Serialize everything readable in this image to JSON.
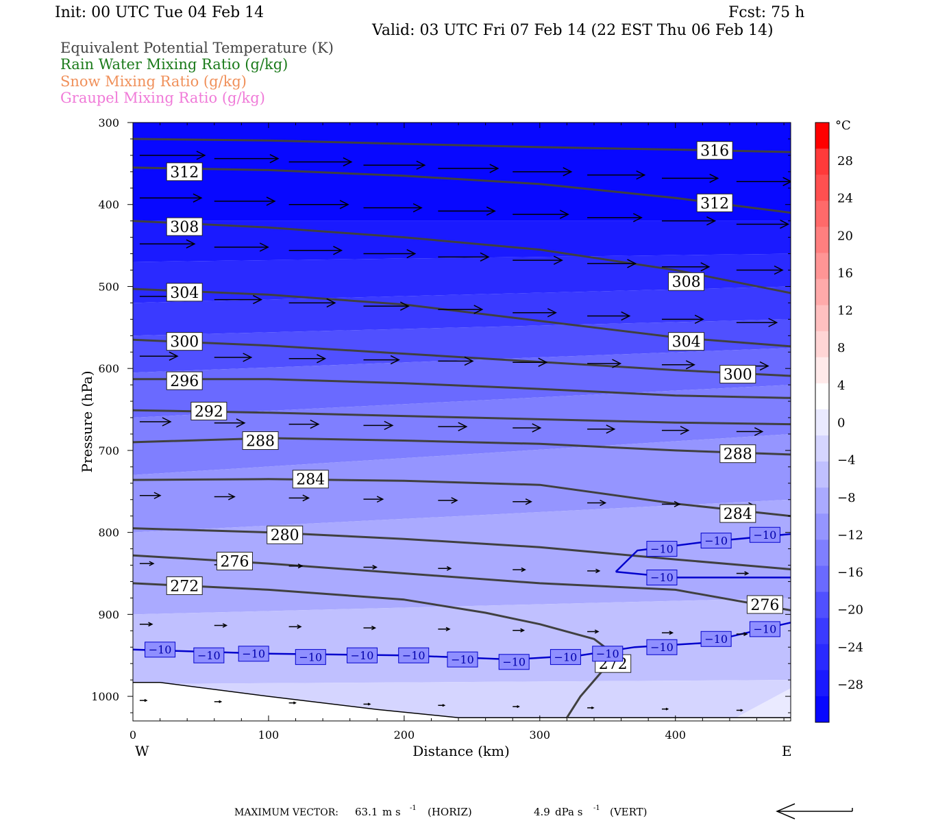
{
  "header": {
    "init": "Init: 00 UTC Tue 04 Feb 14",
    "fcst": "Fcst:   75 h",
    "valid": "Valid: 03 UTC Fri 07 Feb 14 (22 EST Thu 06 Feb 14)"
  },
  "legend": [
    {
      "label": "Equivalent Potential Temperature (K)",
      "color": "#444444"
    },
    {
      "label": "Rain Water Mixing Ratio (g/kg)",
      "color": "#1a7a1a"
    },
    {
      "label": "Snow Mixing Ratio (g/kg)",
      "color": "#f0905a"
    },
    {
      "label": "Graupel Mixing Ratio (g/kg)",
      "color": "#f07ad8"
    }
  ],
  "footer": {
    "max_vector_label": "MAXIMUM VECTOR:",
    "horiz_value": "63.1",
    "horiz_unit": "m s",
    "horiz_exp": "-1",
    "horiz_tag": "(HORIZ)",
    "vert_value": "4.9",
    "vert_unit": "dPa s",
    "vert_exp": "-1",
    "vert_tag": "(VERT)"
  },
  "chart_data": {
    "type": "cross-section",
    "xlabel": "Distance (km)",
    "ylabel": "Pressure (hPa)",
    "xlim": [
      0,
      485
    ],
    "ylim": [
      300,
      1030
    ],
    "x_ticks": [
      0,
      100,
      200,
      300,
      400
    ],
    "y_ticks": [
      300,
      400,
      500,
      600,
      700,
      800,
      900,
      1000
    ],
    "x_end_labels": {
      "left": "W",
      "right": "E"
    },
    "colorbar": {
      "unit": "°C",
      "ticks": [
        "28",
        "24",
        "20",
        "16",
        "12",
        "8",
        "4",
        "0",
        "−4",
        "−8",
        "−12",
        "−16",
        "−20",
        "−24",
        "−28"
      ],
      "colors": [
        "#ff0000",
        "#ff3a3a",
        "#ff5050",
        "#ff6a6a",
        "#ff7f7f",
        "#ff9595",
        "#ffaaaa",
        "#ffc0c0",
        "#ffd5d5",
        "#ffeaea",
        "#ffffff",
        "#eaeaff",
        "#d5d5ff",
        "#c0c0ff",
        "#aaaaff",
        "#9595ff",
        "#7f7fff",
        "#6a6aff",
        "#5050ff",
        "#3a3aff",
        "#2a2aff",
        "#1a1aff",
        "#0808ff"
      ]
    },
    "temperature_fill_bands": [
      {
        "color": "#0808ff",
        "points": [
          [
            0,
            300
          ],
          [
            485,
            300
          ],
          [
            485,
            420
          ],
          [
            0,
            420
          ]
        ]
      },
      {
        "color": "#1a1aff",
        "points": [
          [
            0,
            420
          ],
          [
            485,
            420
          ],
          [
            485,
            460
          ],
          [
            0,
            470
          ]
        ]
      },
      {
        "color": "#2a2aff",
        "points": [
          [
            0,
            470
          ],
          [
            485,
            460
          ],
          [
            485,
            500
          ],
          [
            0,
            520
          ]
        ]
      },
      {
        "color": "#3a3aff",
        "points": [
          [
            0,
            520
          ],
          [
            485,
            500
          ],
          [
            485,
            540
          ],
          [
            0,
            560
          ]
        ]
      },
      {
        "color": "#5050ff",
        "points": [
          [
            0,
            560
          ],
          [
            485,
            540
          ],
          [
            485,
            575
          ],
          [
            0,
            605
          ]
        ]
      },
      {
        "color": "#6a6aff",
        "points": [
          [
            0,
            605
          ],
          [
            485,
            575
          ],
          [
            485,
            620
          ],
          [
            0,
            660
          ]
        ]
      },
      {
        "color": "#7f7fff",
        "points": [
          [
            0,
            660
          ],
          [
            485,
            620
          ],
          [
            485,
            680
          ],
          [
            0,
            730
          ]
        ]
      },
      {
        "color": "#9595ff",
        "points": [
          [
            0,
            730
          ],
          [
            485,
            680
          ],
          [
            485,
            760
          ],
          [
            0,
            800
          ]
        ]
      },
      {
        "color": "#aaaaff",
        "points": [
          [
            0,
            800
          ],
          [
            485,
            760
          ],
          [
            485,
            880
          ],
          [
            0,
            900
          ]
        ]
      },
      {
        "color": "#c0c0ff",
        "points": [
          [
            0,
            900
          ],
          [
            485,
            880
          ],
          [
            485,
            980
          ],
          [
            0,
            985
          ]
        ]
      },
      {
        "color": "#d5d5ff",
        "points": [
          [
            0,
            985
          ],
          [
            485,
            980
          ],
          [
            485,
            1030
          ],
          [
            0,
            1030
          ]
        ]
      },
      {
        "color": "#eaeaff",
        "points": [
          [
            440,
            1030
          ],
          [
            485,
            990
          ],
          [
            485,
            1030
          ]
        ]
      }
    ],
    "terrain": [
      [
        0,
        983
      ],
      [
        20,
        983
      ],
      [
        100,
        1000
      ],
      [
        180,
        1016
      ],
      [
        240,
        1026
      ],
      [
        485,
        1026
      ],
      [
        485,
        1030
      ],
      [
        0,
        1030
      ]
    ],
    "theta_e_contours": [
      {
        "label": "316",
        "points": [
          [
            0,
            320
          ],
          [
            100,
            322
          ],
          [
            200,
            326
          ],
          [
            300,
            330
          ],
          [
            400,
            333
          ],
          [
            485,
            336
          ]
        ],
        "label_at": [
          429,
          334
        ]
      },
      {
        "label": "312",
        "points": [
          [
            0,
            355
          ],
          [
            100,
            358
          ],
          [
            200,
            365
          ],
          [
            300,
            375
          ],
          [
            400,
            392
          ],
          [
            485,
            410
          ]
        ],
        "label_at": [
          38,
          360
        ],
        "label2_at": [
          429,
          398
        ]
      },
      {
        "label": "308",
        "points": [
          [
            0,
            420
          ],
          [
            100,
            428
          ],
          [
            200,
            440
          ],
          [
            300,
            455
          ],
          [
            400,
            480
          ],
          [
            485,
            508
          ]
        ],
        "label_at": [
          38,
          427
        ],
        "label2_at": [
          408,
          494
        ]
      },
      {
        "label": "304",
        "points": [
          [
            0,
            503
          ],
          [
            100,
            510
          ],
          [
            200,
            522
          ],
          [
            300,
            542
          ],
          [
            400,
            562
          ],
          [
            485,
            573
          ]
        ],
        "label_at": [
          38,
          507
        ],
        "label2_at": [
          408,
          567
        ]
      },
      {
        "label": "300",
        "points": [
          [
            0,
            565
          ],
          [
            100,
            572
          ],
          [
            200,
            582
          ],
          [
            300,
            592
          ],
          [
            400,
            602
          ],
          [
            485,
            609
          ]
        ],
        "label_at": [
          38,
          567
        ],
        "label2_at": [
          446,
          607
        ]
      },
      {
        "label": "296",
        "points": [
          [
            0,
            613
          ],
          [
            100,
            613
          ],
          [
            200,
            618
          ],
          [
            300,
            625
          ],
          [
            400,
            633
          ],
          [
            485,
            636
          ]
        ],
        "label_at": [
          38,
          615
        ]
      },
      {
        "label": "292",
        "points": [
          [
            0,
            651
          ],
          [
            100,
            654
          ],
          [
            200,
            658
          ],
          [
            300,
            662
          ],
          [
            400,
            666
          ],
          [
            485,
            668
          ]
        ],
        "label_at": [
          56,
          652
        ]
      },
      {
        "label": "288",
        "points": [
          [
            0,
            690
          ],
          [
            100,
            685
          ],
          [
            200,
            688
          ],
          [
            300,
            692
          ],
          [
            400,
            700
          ],
          [
            485,
            705
          ]
        ],
        "label_at": [
          94,
          688
        ],
        "label2_at": [
          446,
          704
        ]
      },
      {
        "label": "284",
        "points": [
          [
            0,
            736
          ],
          [
            100,
            735
          ],
          [
            200,
            737
          ],
          [
            300,
            742
          ],
          [
            400,
            765
          ],
          [
            485,
            780
          ]
        ],
        "label_at": [
          131,
          735
        ],
        "label2_at": [
          446,
          777
        ]
      },
      {
        "label": "280",
        "points": [
          [
            0,
            795
          ],
          [
            100,
            800
          ],
          [
            200,
            808
          ],
          [
            300,
            818
          ],
          [
            400,
            833
          ],
          [
            485,
            845
          ]
        ],
        "label_at": [
          112,
          803
        ]
      },
      {
        "label": "276",
        "points": [
          [
            0,
            828
          ],
          [
            100,
            838
          ],
          [
            200,
            850
          ],
          [
            300,
            862
          ],
          [
            400,
            870
          ],
          [
            485,
            895
          ]
        ],
        "label_at": [
          75,
          835
        ],
        "label2_at": [
          466,
          888
        ]
      },
      {
        "label": "272",
        "points": [
          [
            0,
            862
          ],
          [
            100,
            870
          ],
          [
            200,
            882
          ],
          [
            260,
            898
          ],
          [
            300,
            912
          ],
          [
            340,
            930
          ],
          [
            356,
            950
          ],
          [
            330,
            1000
          ],
          [
            320,
            1026
          ]
        ],
        "label_at": [
          38,
          865
        ],
        "label2_at": [
          354,
          960
        ]
      }
    ],
    "temp_isotherm_minus10": [
      {
        "label": "−10",
        "points": [
          [
            0,
            943
          ],
          [
            100,
            948
          ],
          [
            200,
            950
          ],
          [
            280,
            955
          ],
          [
            330,
            950
          ],
          [
            370,
            940
          ],
          [
            420,
            935
          ],
          [
            485,
            910
          ]
        ],
        "label_xs": [
          20,
          56,
          89,
          131,
          169,
          207,
          243,
          281,
          319,
          350,
          390,
          430,
          466
        ]
      },
      {
        "label": "−10",
        "points": [
          [
            356,
            848
          ],
          [
            372,
            822
          ],
          [
            420,
            812
          ],
          [
            485,
            802
          ],
          [
            485,
            802
          ]
        ],
        "label_xs": [
          390,
          430,
          466
        ]
      },
      {
        "label": "−10",
        "points": [
          [
            356,
            848
          ],
          [
            400,
            855
          ],
          [
            485,
            855
          ]
        ],
        "label_xs": [
          390
        ]
      }
    ],
    "temp_isotherm_label_pressures": [
      [
        943,
        950,
        948,
        952,
        950,
        950,
        955,
        958,
        952,
        948,
        940,
        930,
        918
      ],
      [
        820,
        810,
        803
      ],
      [
        855
      ]
    ]
  }
}
